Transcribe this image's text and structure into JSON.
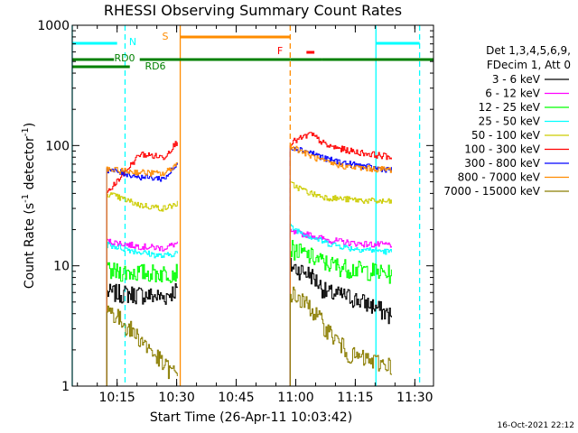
{
  "chart_data": {
    "type": "line",
    "title": "RHESSI Observing Summary Count Rates",
    "xlabel": "Start Time (26-Apr-11 10:03:42)",
    "ylabel_main": "Count Rate (s",
    "ylabel_sup1": "-1",
    "ylabel_mid": " detector",
    "ylabel_sup2": "-1",
    "ylabel_end": ")",
    "yscale": "log",
    "ylim": [
      1,
      1000
    ],
    "xlim_minutes": [
      0,
      91
    ],
    "x_tick_labels": [
      {
        "label": "10:15",
        "minute": 11.3
      },
      {
        "label": "10:30",
        "minute": 26.3
      },
      {
        "label": "10:45",
        "minute": 41.3
      },
      {
        "label": "11:00",
        "minute": 56.3
      },
      {
        "label": "11:15",
        "minute": 71.3
      },
      {
        "label": "11:30",
        "minute": 86.3
      }
    ],
    "y_tick_labels": [
      {
        "label": "1",
        "value": 1
      },
      {
        "label": "10",
        "value": 10
      },
      {
        "label": "100",
        "value": 100
      },
      {
        "label": "1000",
        "value": 1000
      }
    ],
    "legend": {
      "header1": "Det 1,3,4,5,6,9,",
      "header2": "FDecim 1, Att 0",
      "placement": "right"
    },
    "footer_timestamp": "16-Oct-2021 22:12",
    "segments": [
      [
        8.7,
        26.6
      ],
      [
        54.9,
        80.5
      ]
    ],
    "series": [
      {
        "name": "3 - 6 keV",
        "color": "#000000",
        "values": [
          [
            8.7,
            6.0
          ],
          [
            17.0,
            5.8
          ],
          [
            23.0,
            5.5
          ],
          [
            26.6,
            6.5
          ],
          [
            54.9,
            10.0
          ],
          [
            60.0,
            8.5
          ],
          [
            64.0,
            6.0
          ],
          [
            70.0,
            5.5
          ],
          [
            76.0,
            4.6
          ],
          [
            80.5,
            3.8
          ]
        ]
      },
      {
        "name": "6 - 12 keV",
        "color": "#ff00ff",
        "values": [
          [
            8.7,
            16.0
          ],
          [
            17.0,
            14.5
          ],
          [
            23.0,
            14.0
          ],
          [
            26.6,
            15.5
          ],
          [
            54.9,
            19.0
          ],
          [
            60.0,
            18.0
          ],
          [
            64.0,
            16.5
          ],
          [
            70.0,
            15.5
          ],
          [
            76.0,
            15.0
          ],
          [
            80.5,
            15.0
          ]
        ]
      },
      {
        "name": "12 - 25 keV",
        "color": "#00ff00",
        "values": [
          [
            8.7,
            9.0
          ],
          [
            17.0,
            8.8
          ],
          [
            23.0,
            8.7
          ],
          [
            26.6,
            9.0
          ],
          [
            54.9,
            14.0
          ],
          [
            60.0,
            12.0
          ],
          [
            64.0,
            10.5
          ],
          [
            70.0,
            9.5
          ],
          [
            76.0,
            9.0
          ],
          [
            80.5,
            8.5
          ]
        ]
      },
      {
        "name": "25 - 50 keV",
        "color": "#00ffff",
        "values": [
          [
            8.7,
            15.0
          ],
          [
            17.0,
            13.0
          ],
          [
            23.0,
            12.0
          ],
          [
            26.6,
            13.0
          ],
          [
            54.9,
            21.0
          ],
          [
            60.0,
            17.5
          ],
          [
            64.0,
            15.5
          ],
          [
            70.0,
            14.0
          ],
          [
            76.0,
            13.5
          ],
          [
            80.5,
            13.0
          ]
        ]
      },
      {
        "name": "50 - 100 keV",
        "color": "#cccc00",
        "values": [
          [
            8.7,
            40.0
          ],
          [
            17.0,
            32.0
          ],
          [
            23.0,
            30.0
          ],
          [
            26.6,
            33.0
          ],
          [
            54.9,
            48.0
          ],
          [
            60.0,
            40.0
          ],
          [
            64.0,
            37.0
          ],
          [
            70.0,
            35.5
          ],
          [
            76.0,
            34.5
          ],
          [
            80.5,
            34.0
          ]
        ]
      },
      {
        "name": "100 - 300 keV",
        "color": "#ff0000",
        "values": [
          [
            8.7,
            40.0
          ],
          [
            17.0,
            85.0
          ],
          [
            23.0,
            80.0
          ],
          [
            26.6,
            110.0
          ],
          [
            54.9,
            105.0
          ],
          [
            60.0,
            125.0
          ],
          [
            64.0,
            100.0
          ],
          [
            70.0,
            90.0
          ],
          [
            76.0,
            84.0
          ],
          [
            80.5,
            80.0
          ]
        ]
      },
      {
        "name": "300 - 800 keV",
        "color": "#0000ff",
        "values": [
          [
            8.7,
            63.0
          ],
          [
            17.0,
            55.0
          ],
          [
            23.0,
            53.0
          ],
          [
            26.6,
            70.0
          ],
          [
            54.9,
            98.0
          ],
          [
            60.0,
            88.0
          ],
          [
            64.0,
            77.0
          ],
          [
            70.0,
            70.0
          ],
          [
            76.0,
            65.0
          ],
          [
            80.5,
            63.0
          ]
        ]
      },
      {
        "name": "800 - 7000 keV",
        "color": "#ff8c00",
        "values": [
          [
            8.7,
            63.0
          ],
          [
            17.0,
            60.0
          ],
          [
            23.0,
            58.0
          ],
          [
            26.6,
            72.0
          ],
          [
            54.9,
            100.0
          ],
          [
            60.0,
            82.0
          ],
          [
            64.0,
            72.0
          ],
          [
            70.0,
            66.0
          ],
          [
            76.0,
            64.0
          ],
          [
            80.5,
            63.0
          ]
        ]
      },
      {
        "name": "7000 - 15000 keV",
        "color": "#8b7d00",
        "values": [
          [
            8.7,
            4.5
          ],
          [
            17.0,
            2.5
          ],
          [
            23.0,
            1.5
          ],
          [
            26.6,
            1.2
          ],
          [
            54.9,
            6.0
          ],
          [
            60.0,
            4.5
          ],
          [
            64.0,
            3.0
          ],
          [
            70.0,
            1.8
          ],
          [
            76.0,
            1.6
          ],
          [
            80.5,
            1.5
          ]
        ]
      }
    ],
    "annotations": [
      {
        "label": "N",
        "color": "#00ffff"
      },
      {
        "label": "S",
        "color": "#ff8c00"
      },
      {
        "label": "F",
        "color": "#ff0000"
      },
      {
        "label": "RD0",
        "color": "#008000"
      },
      {
        "label": "RD6",
        "color": "#008000"
      }
    ],
    "status_bars": [
      {
        "name": "night",
        "color": "#00ffff",
        "intervals": [
          [
            0,
            11.3
          ],
          [
            76.5,
            87.5
          ]
        ]
      },
      {
        "name": "saa",
        "color": "#ff8c00",
        "intervals": [
          [
            27.2,
            54.9
          ]
        ]
      },
      {
        "name": "flare",
        "color": "#ff0000",
        "intervals": [
          [
            59.0,
            61.0
          ]
        ]
      },
      {
        "name": "rd0",
        "color": "#008000",
        "intervals": [
          [
            0,
            10.5
          ],
          [
            17.0,
            55.0
          ],
          [
            55.0,
            63.0
          ],
          [
            63.0,
            91.0
          ]
        ]
      },
      {
        "name": "rd6",
        "color": "#008000",
        "intervals": [
          [
            0,
            14.5
          ]
        ]
      }
    ],
    "vertical_markers": [
      {
        "color": "#00ffff",
        "style": "solid",
        "minute": 0
      },
      {
        "color": "#00ffff",
        "style": "dashed",
        "minute": 13.3
      },
      {
        "color": "#ff8c00",
        "style": "solid",
        "minute": 27.2
      },
      {
        "color": "#ff8c00",
        "style": "dashed",
        "minute": 54.9
      },
      {
        "color": "#00ffff",
        "style": "solid",
        "minute": 76.5
      },
      {
        "color": "#00ffff",
        "style": "dashed",
        "minute": 87.5
      }
    ]
  }
}
